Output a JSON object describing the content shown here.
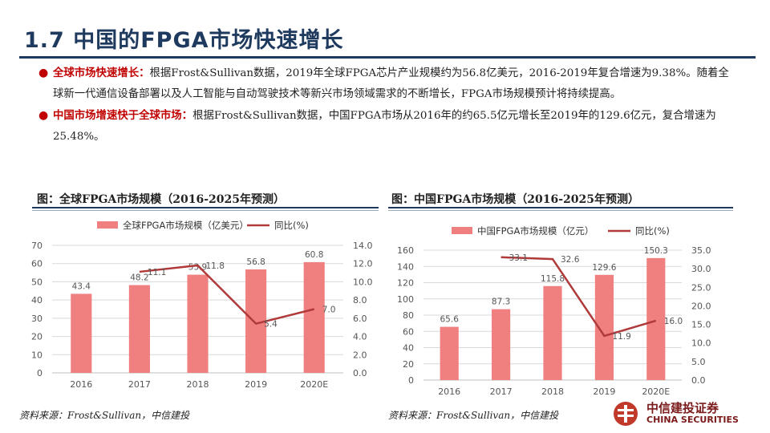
{
  "header": {
    "title": "1.7  中国的FPGA市场快速增长"
  },
  "bullets": [
    {
      "lead": "全球市场快速增长：",
      "text": "根据Frost&Sullivan数据，2019年全球FPGA芯片产业规模约为56.8亿美元，2016-2019年复合增速为9.38%。随着全球新一代通信设备部署以及人工智能与自动驾驶技术等新兴市场领域需求的不断增长，FPGA市场规模预计将持续提高。"
    },
    {
      "lead": "中国市场增速快于全球市场：",
      "text": "根据Frost&Sullivan数据，中国FPGA市场从2016年的约65.5亿元增长至2019年的129.6亿元，复合增速为25.48%。"
    }
  ],
  "left_chart": {
    "caption": "图：全球FPGA市场规模（2016-2025年预测）",
    "source": "资料来源：Frost&Sullivan，中信建投"
  },
  "right_chart": {
    "caption": "图：中国FPGA市场规模（2016-2025年预测）",
    "source": "资料来源：Frost&Sullivan，中信建投"
  },
  "logo": {
    "name_cn": "中信建投证券",
    "name_en": "CHINA SECURITIES"
  },
  "colors": {
    "bar": "#f08080",
    "line": "#b03a3a",
    "title": "#1f3a5f",
    "accent": "#c00000"
  },
  "chart_data": [
    {
      "type": "bar",
      "categories": [
        "2016",
        "2017",
        "2018",
        "2019",
        "2020E"
      ],
      "series": [
        {
          "name": "全球FPGA市场规模（亿美元）",
          "type": "bar",
          "axis": "left",
          "values": [
            43.4,
            48.2,
            53.9,
            56.8,
            60.8
          ],
          "labels": [
            "43.4",
            "48.2",
            "53.9",
            "56.8",
            "60.8"
          ]
        },
        {
          "name": "同比(%)",
          "type": "line",
          "axis": "right",
          "values": [
            null,
            11.1,
            11.8,
            5.4,
            7.0
          ],
          "labels": [
            "",
            "11.1",
            "11.8",
            "5.4",
            "7.0"
          ]
        }
      ],
      "ylim": [
        0,
        70
      ],
      "yticks": [
        "0",
        "10",
        "20",
        "30",
        "40",
        "50",
        "60",
        "70"
      ],
      "y2lim": [
        0,
        14
      ],
      "y2ticks": [
        "0.0",
        "2.0",
        "4.0",
        "6.0",
        "8.0",
        "10.0",
        "12.0",
        "14.0"
      ],
      "legend": "top",
      "grid": true
    },
    {
      "type": "bar",
      "categories": [
        "2016",
        "2017",
        "2018",
        "2019",
        "2020E"
      ],
      "series": [
        {
          "name": "中国FPGA市场规模（亿元）",
          "type": "bar",
          "axis": "left",
          "values": [
            65.6,
            87.3,
            115.8,
            129.6,
            150.3
          ],
          "labels": [
            "65.6",
            "87.3",
            "115.8",
            "129.6",
            "150.3"
          ]
        },
        {
          "name": "同比(%)",
          "type": "line",
          "axis": "right",
          "values": [
            null,
            33.1,
            32.6,
            11.9,
            16.0
          ],
          "labels": [
            "",
            "33.1",
            "32.6",
            "11.9",
            "16.0"
          ]
        }
      ],
      "ylim": [
        0,
        160
      ],
      "yticks": [
        "0",
        "20",
        "40",
        "60",
        "80",
        "100",
        "120",
        "140",
        "160"
      ],
      "y2lim": [
        0,
        35
      ],
      "y2ticks": [
        "0.0",
        "5.0",
        "10.0",
        "15.0",
        "20.0",
        "25.0",
        "30.0",
        "35.0"
      ],
      "legend": "top",
      "grid": true
    }
  ]
}
